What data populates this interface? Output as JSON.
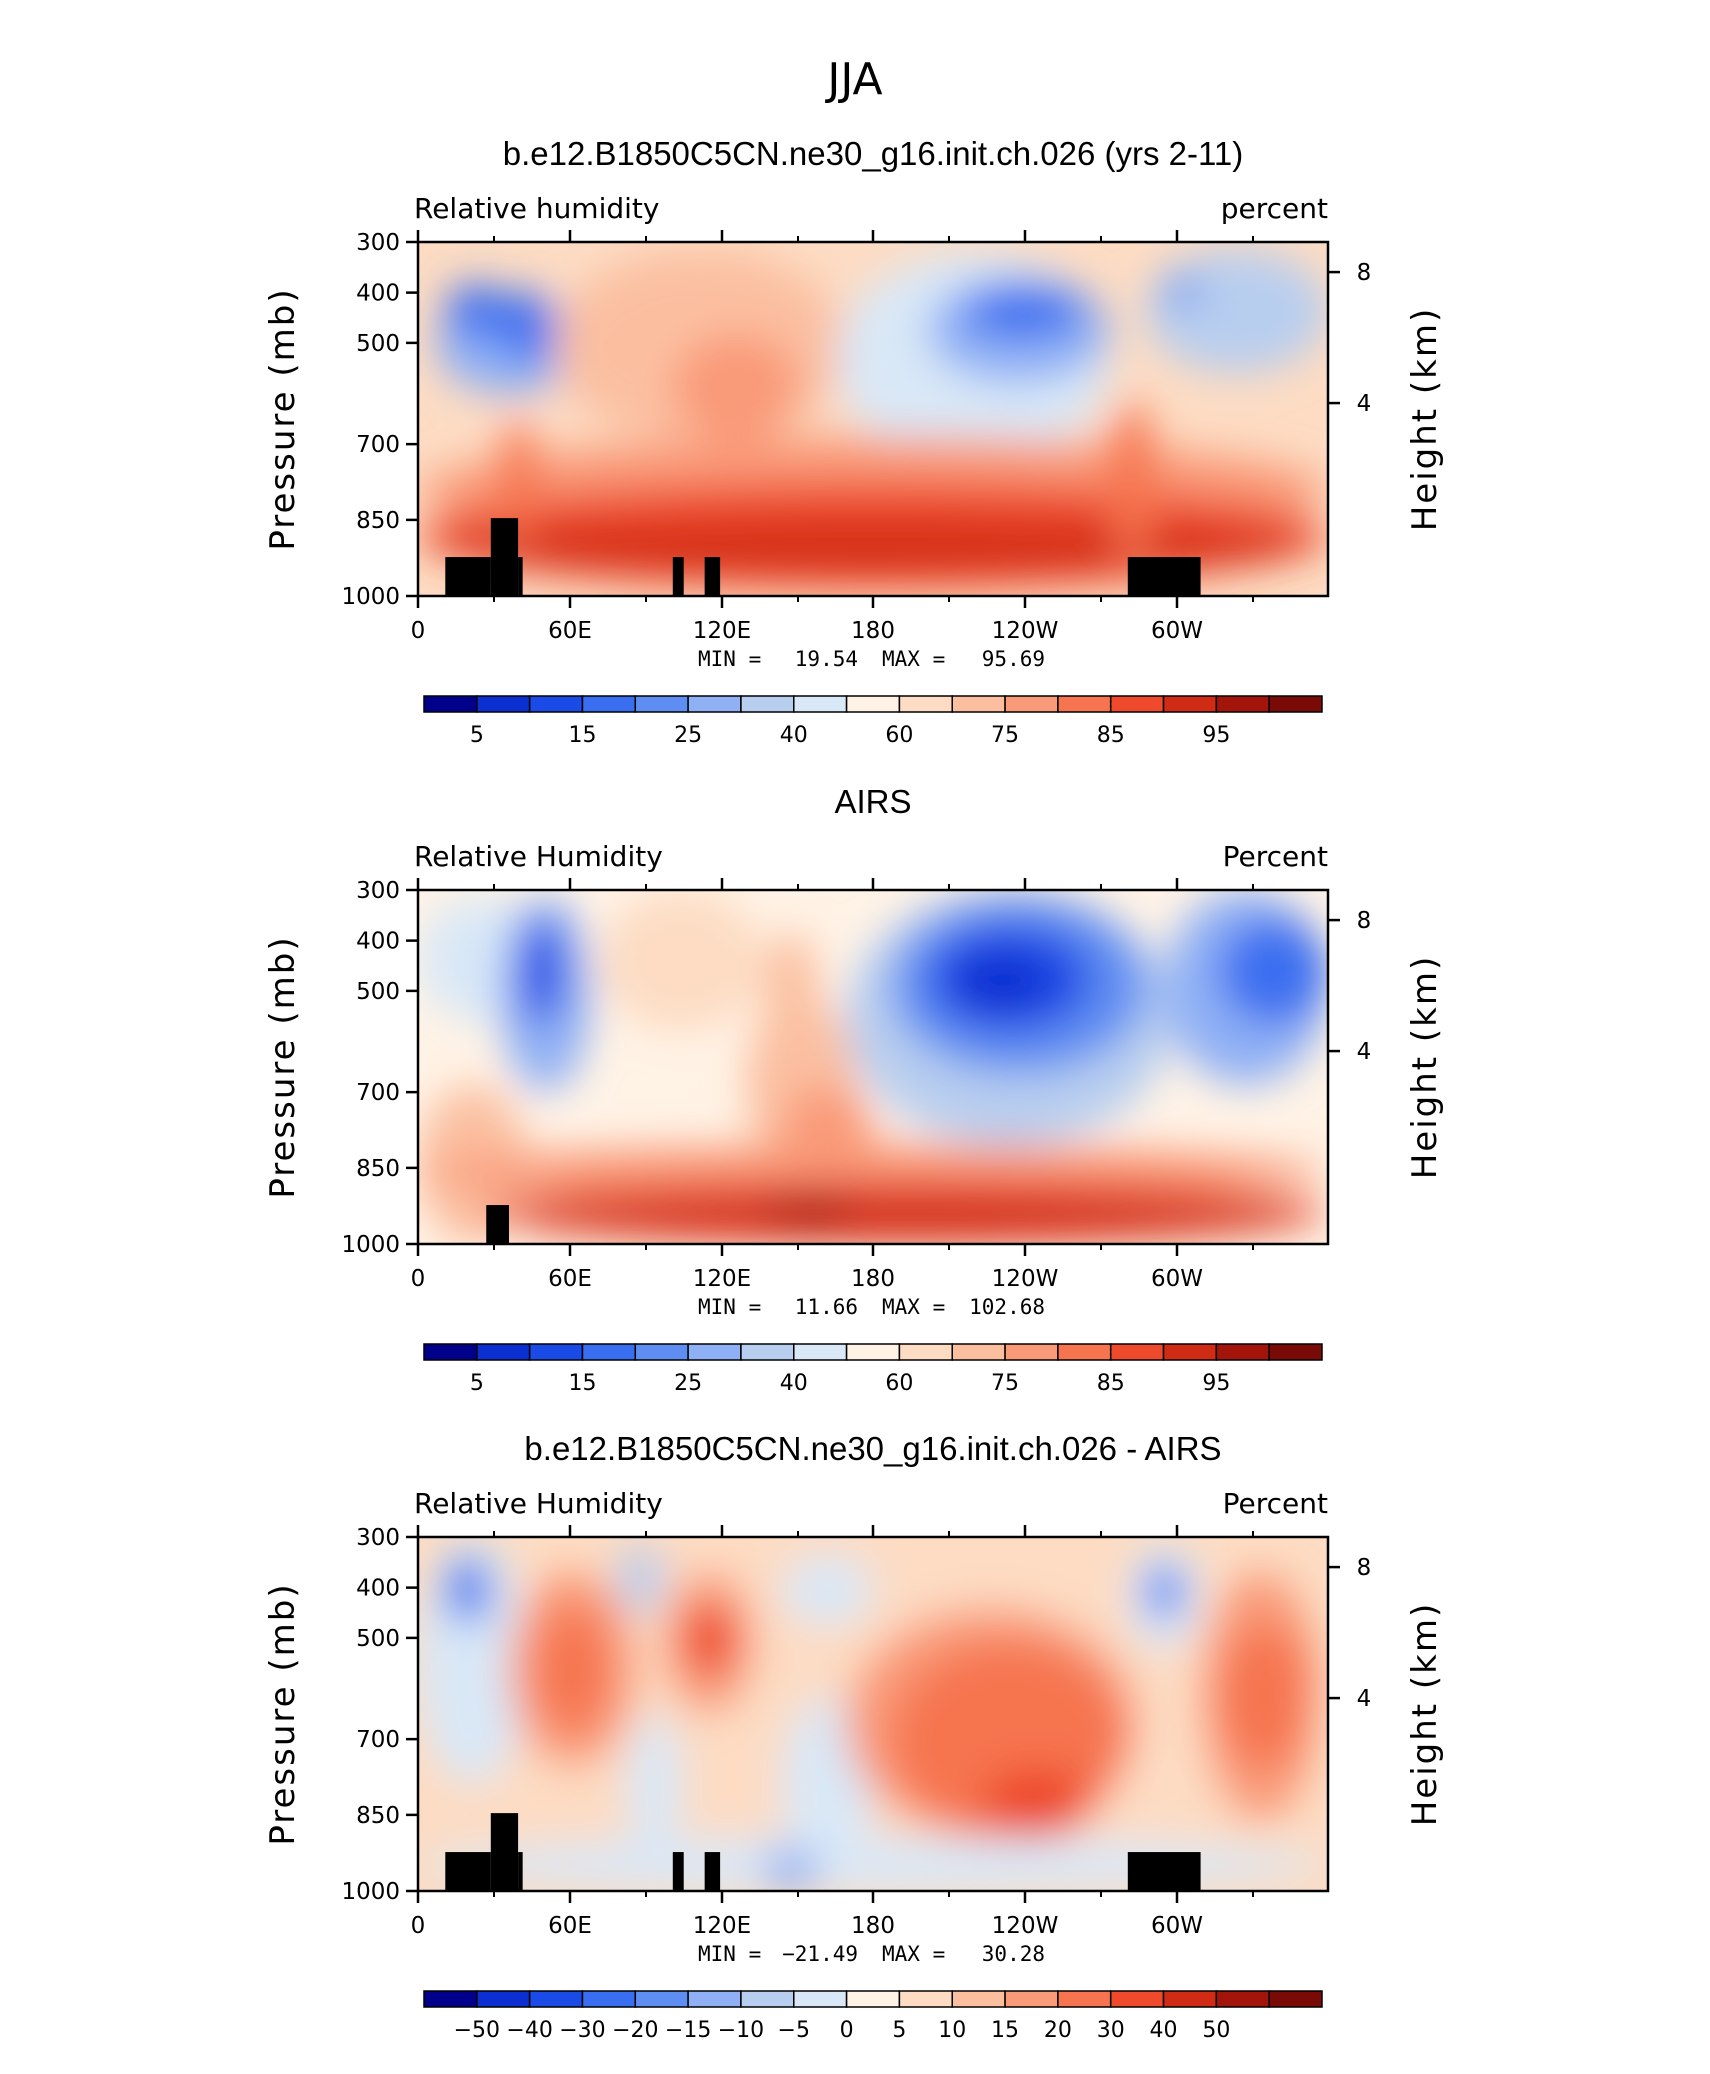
{
  "suptitle": "JJA",
  "colors": {
    "absolute_scale": [
      "#00008a",
      "#0b2fd0",
      "#1a4be6",
      "#3a6ef0",
      "#5e8ef2",
      "#8fb0f5",
      "#b8ceef",
      "#d9e8f7",
      "#fff3e6",
      "#fddcc3",
      "#fbbfa0",
      "#f99a78",
      "#f6744f",
      "#ee4a2b",
      "#d02b14",
      "#a3150a",
      "#7a0a05"
    ],
    "difference_scale": [
      "#00008a",
      "#0b2fd0",
      "#1a4be6",
      "#3a6ef0",
      "#5e8ef2",
      "#8fb0f5",
      "#b8ceef",
      "#d9e8f7",
      "#fff3e6",
      "#fddcc3",
      "#fbbfa0",
      "#f99a78",
      "#f6744f",
      "#ee4a2b",
      "#d02b14",
      "#a3150a",
      "#7a0a05"
    ],
    "topography": "#000000"
  },
  "chart_data": [
    {
      "type": "heatmap",
      "title": "b.e12.B1850C5CN.ne30_g16.init.ch.026 (yrs 2-11)",
      "left_label": "Relative humidity",
      "right_label": "percent",
      "ylabel": "Pressure (mb)",
      "ylabel_right": "Height (km)",
      "x_ticks": [
        "0",
        "60E",
        "120E",
        "180",
        "120W",
        "60W"
      ],
      "y_ticks": [
        "300",
        "400",
        "500",
        "700",
        "850",
        "1000"
      ],
      "y_ticks_right": [
        "8",
        "4"
      ],
      "min_label": "MIN =",
      "min_value": "19.54",
      "max_label": "MAX =",
      "max_value": "95.69",
      "colorbar_labels": [
        "5",
        "15",
        "25",
        "40",
        "60",
        "75",
        "85",
        "95"
      ],
      "scale": "absolute_scale"
    },
    {
      "type": "heatmap",
      "title": "AIRS",
      "left_label": "Relative Humidity",
      "right_label": "Percent",
      "ylabel": "Pressure (mb)",
      "ylabel_right": "Height (km)",
      "x_ticks": [
        "0",
        "60E",
        "120E",
        "180",
        "120W",
        "60W"
      ],
      "y_ticks": [
        "300",
        "400",
        "500",
        "700",
        "850",
        "1000"
      ],
      "y_ticks_right": [
        "8",
        "4"
      ],
      "min_label": "MIN =",
      "min_value": "11.66",
      "max_label": "MAX =",
      "max_value": "102.68",
      "colorbar_labels": [
        "5",
        "15",
        "25",
        "40",
        "60",
        "75",
        "85",
        "95"
      ],
      "scale": "absolute_scale"
    },
    {
      "type": "heatmap",
      "title": "b.e12.B1850C5CN.ne30_g16.init.ch.026 - AIRS",
      "left_label": "Relative Humidity",
      "right_label": "Percent",
      "ylabel": "Pressure (mb)",
      "ylabel_right": "Height (km)",
      "x_ticks": [
        "0",
        "60E",
        "120E",
        "180",
        "120W",
        "60W"
      ],
      "y_ticks": [
        "300",
        "400",
        "500",
        "700",
        "850",
        "1000"
      ],
      "y_ticks_right": [
        "8",
        "4"
      ],
      "min_label": "MIN =",
      "min_value": "−21.49",
      "max_label": "MAX =",
      "max_value": "30.28",
      "colorbar_labels": [
        "−50",
        "−40",
        "−30",
        "−20",
        "−15",
        "−10",
        "−5",
        "0",
        "5",
        "10",
        "15",
        "20",
        "30",
        "40",
        "50"
      ],
      "scale": "difference_scale"
    }
  ]
}
